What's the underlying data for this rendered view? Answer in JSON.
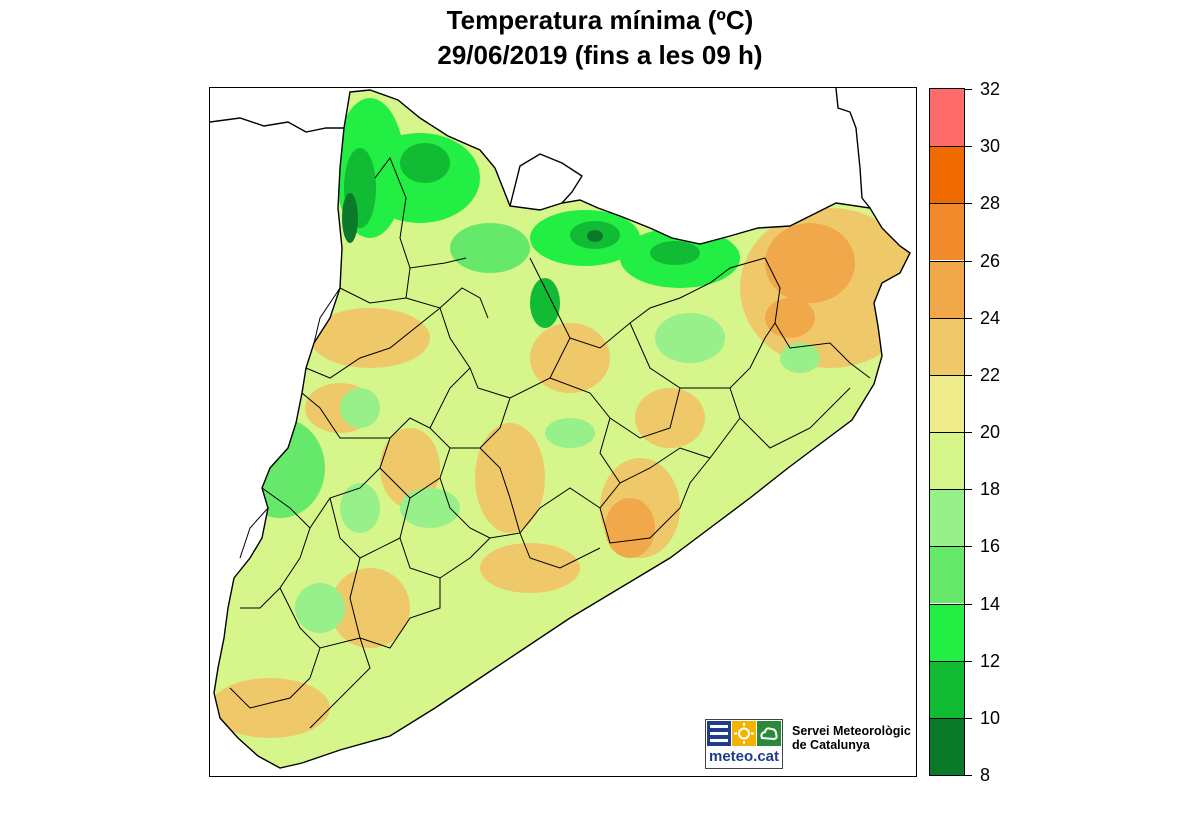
{
  "title": {
    "line1": "Temperatura mínima (ºC)",
    "line2": "29/06/2019 (fins a les 09 h)"
  },
  "colorbar": {
    "ticks": [
      "32",
      "30",
      "28",
      "26",
      "24",
      "22",
      "20",
      "18",
      "16",
      "14",
      "12",
      "10",
      "8"
    ],
    "colors": [
      "#ff6b6b",
      "#ef6a00",
      "#f08a2a",
      "#f0a84a",
      "#efc86a",
      "#eeeb8a",
      "#d6f58a",
      "#98f08a",
      "#66e96a",
      "#22ee44",
      "#11bb33",
      "#0a7a2a",
      "#4aa3b0"
    ]
  },
  "legend_colors": {
    "land_warm": "#efc86a",
    "land_mid": "#d6f58a",
    "land_cool": "#66e96a",
    "mountain": "#11bb33",
    "border": "#000000",
    "sea": "#ffffff"
  },
  "logo": {
    "brand": "meteo.cat",
    "icons": [
      "waves-icon",
      "sun-icon",
      "cloud-icon"
    ],
    "colors": [
      "#1f3b8c",
      "#f3b400",
      "#2a8a3a"
    ]
  },
  "organization": {
    "line1": "Servei Meteorològic",
    "line2": "de Catalunya"
  }
}
